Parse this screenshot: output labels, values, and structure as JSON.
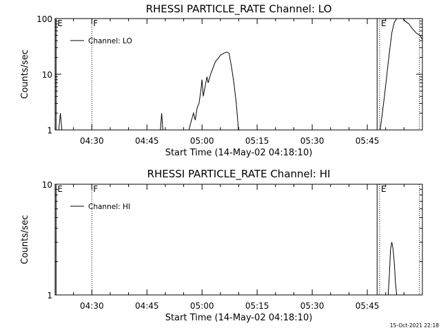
{
  "footer": {
    "timestamp": "15-Oct-2021 22:18"
  },
  "chart_data": [
    {
      "type": "line",
      "title": "RHESSI PARTICLE_RATE Channel: LO",
      "xlabel": "Start Time (14-May-02 04:18:10)",
      "ylabel": "Counts/sec",
      "x_ticks": [
        "04:30",
        "04:45",
        "05:00",
        "05:15",
        "05:30",
        "05:45"
      ],
      "x_range": [
        "04:20",
        "06:00"
      ],
      "y_scale": "log",
      "ylim": [
        1,
        100
      ],
      "y_ticks": [
        "1",
        "10",
        "100"
      ],
      "legend": "top-left",
      "series": [
        {
          "name": "Channel: LO",
          "segments": [
            [
              [
                "04:21:00",
                1
              ],
              [
                "04:21:25",
                2
              ],
              [
                "04:21:50",
                1
              ]
            ],
            [
              [
                "04:48:40",
                1
              ],
              [
                "04:49:00",
                2
              ],
              [
                "04:49:20",
                1
              ]
            ],
            [
              [
                "04:56:25",
                1
              ],
              [
                "04:57:00",
                1.4
              ],
              [
                "04:57:40",
                2
              ],
              [
                "04:58:10",
                1.5
              ],
              [
                "04:58:40",
                2.5
              ],
              [
                "04:59:10",
                3
              ],
              [
                "04:59:40",
                5
              ],
              [
                "05:00:00",
                8
              ],
              [
                "05:00:20",
                4
              ],
              [
                "05:00:50",
                6
              ],
              [
                "05:01:20",
                9
              ],
              [
                "05:01:40",
                7
              ],
              [
                "05:02:20",
                10
              ],
              [
                "05:03:00",
                13
              ],
              [
                "05:03:40",
                17
              ],
              [
                "05:04:20",
                19
              ],
              [
                "05:05:00",
                22
              ],
              [
                "05:06:00",
                24
              ],
              [
                "05:06:40",
                25
              ],
              [
                "05:07:20",
                24
              ],
              [
                "05:08:00",
                14
              ],
              [
                "05:08:40",
                7
              ],
              [
                "05:09:20",
                3
              ],
              [
                "05:09:55",
                1
              ]
            ],
            [
              [
                "05:48:30",
                1
              ],
              [
                "05:49:00",
                1.8
              ],
              [
                "05:49:40",
                4
              ],
              [
                "05:50:20",
                10
              ],
              [
                "05:51:00",
                24
              ],
              [
                "05:51:40",
                55
              ],
              [
                "05:52:20",
                85
              ],
              [
                "05:53:00",
                100
              ],
              [
                "05:53:40",
                105
              ],
              [
                "05:54:40",
                100
              ],
              [
                "05:55:20",
                90
              ],
              [
                "05:56:20",
                80
              ],
              [
                "05:57:20",
                65
              ],
              [
                "05:58:20",
                55
              ],
              [
                "05:59:20",
                50
              ],
              [
                "06:00:00",
                42
              ]
            ]
          ]
        }
      ],
      "markers": [
        {
          "label": "E",
          "time": "04:20:15",
          "style": "solid"
        },
        {
          "label": "F",
          "time": "04:30:00",
          "style": "dotted"
        },
        {
          "label": "",
          "time": "05:47:40",
          "style": "solid"
        },
        {
          "label": "E",
          "time": "05:48:20",
          "style": "dotted"
        },
        {
          "label": "",
          "time": "05:59:10",
          "style": "dotted"
        }
      ]
    },
    {
      "type": "line",
      "title": "RHESSI PARTICLE_RATE Channel: HI",
      "xlabel": "Start Time (14-May-02 04:18:10)",
      "ylabel": "Counts/sec",
      "x_ticks": [
        "04:30",
        "04:45",
        "05:00",
        "05:15",
        "05:30",
        "05:45"
      ],
      "x_range": [
        "04:20",
        "06:00"
      ],
      "y_scale": "log",
      "ylim": [
        1,
        10
      ],
      "y_ticks": [
        "1",
        "10"
      ],
      "legend": "top-left",
      "series": [
        {
          "name": "Channel: HI",
          "segments": [
            [
              [
                "05:50:40",
                1
              ],
              [
                "05:51:00",
                1.5
              ],
              [
                "05:51:20",
                2.6
              ],
              [
                "05:51:40",
                3
              ],
              [
                "05:52:00",
                2.6
              ],
              [
                "05:52:20",
                2
              ],
              [
                "05:52:40",
                1.3
              ],
              [
                "05:53:00",
                1
              ]
            ]
          ]
        }
      ],
      "markers": [
        {
          "label": "E",
          "time": "04:20:15",
          "style": "solid"
        },
        {
          "label": "F",
          "time": "04:30:00",
          "style": "dotted"
        },
        {
          "label": "",
          "time": "05:47:40",
          "style": "solid"
        },
        {
          "label": "E",
          "time": "05:48:20",
          "style": "dotted"
        },
        {
          "label": "",
          "time": "05:59:10",
          "style": "dotted"
        }
      ]
    }
  ]
}
